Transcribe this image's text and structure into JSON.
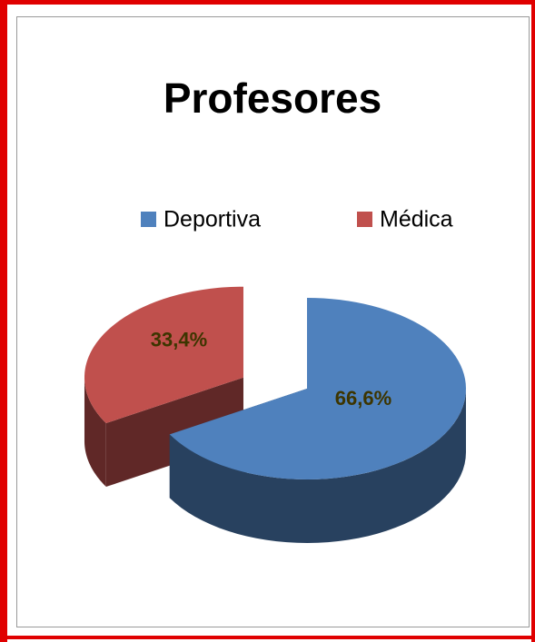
{
  "chart_data": {
    "type": "pie",
    "title": "Profesores",
    "categories": [
      "Deportiva",
      "Médica"
    ],
    "values": [
      66.6,
      33.4
    ],
    "value_labels": [
      "66,6%",
      "33,4%"
    ],
    "colors": [
      "#4f81bd",
      "#c0504d"
    ],
    "legend": "top"
  }
}
